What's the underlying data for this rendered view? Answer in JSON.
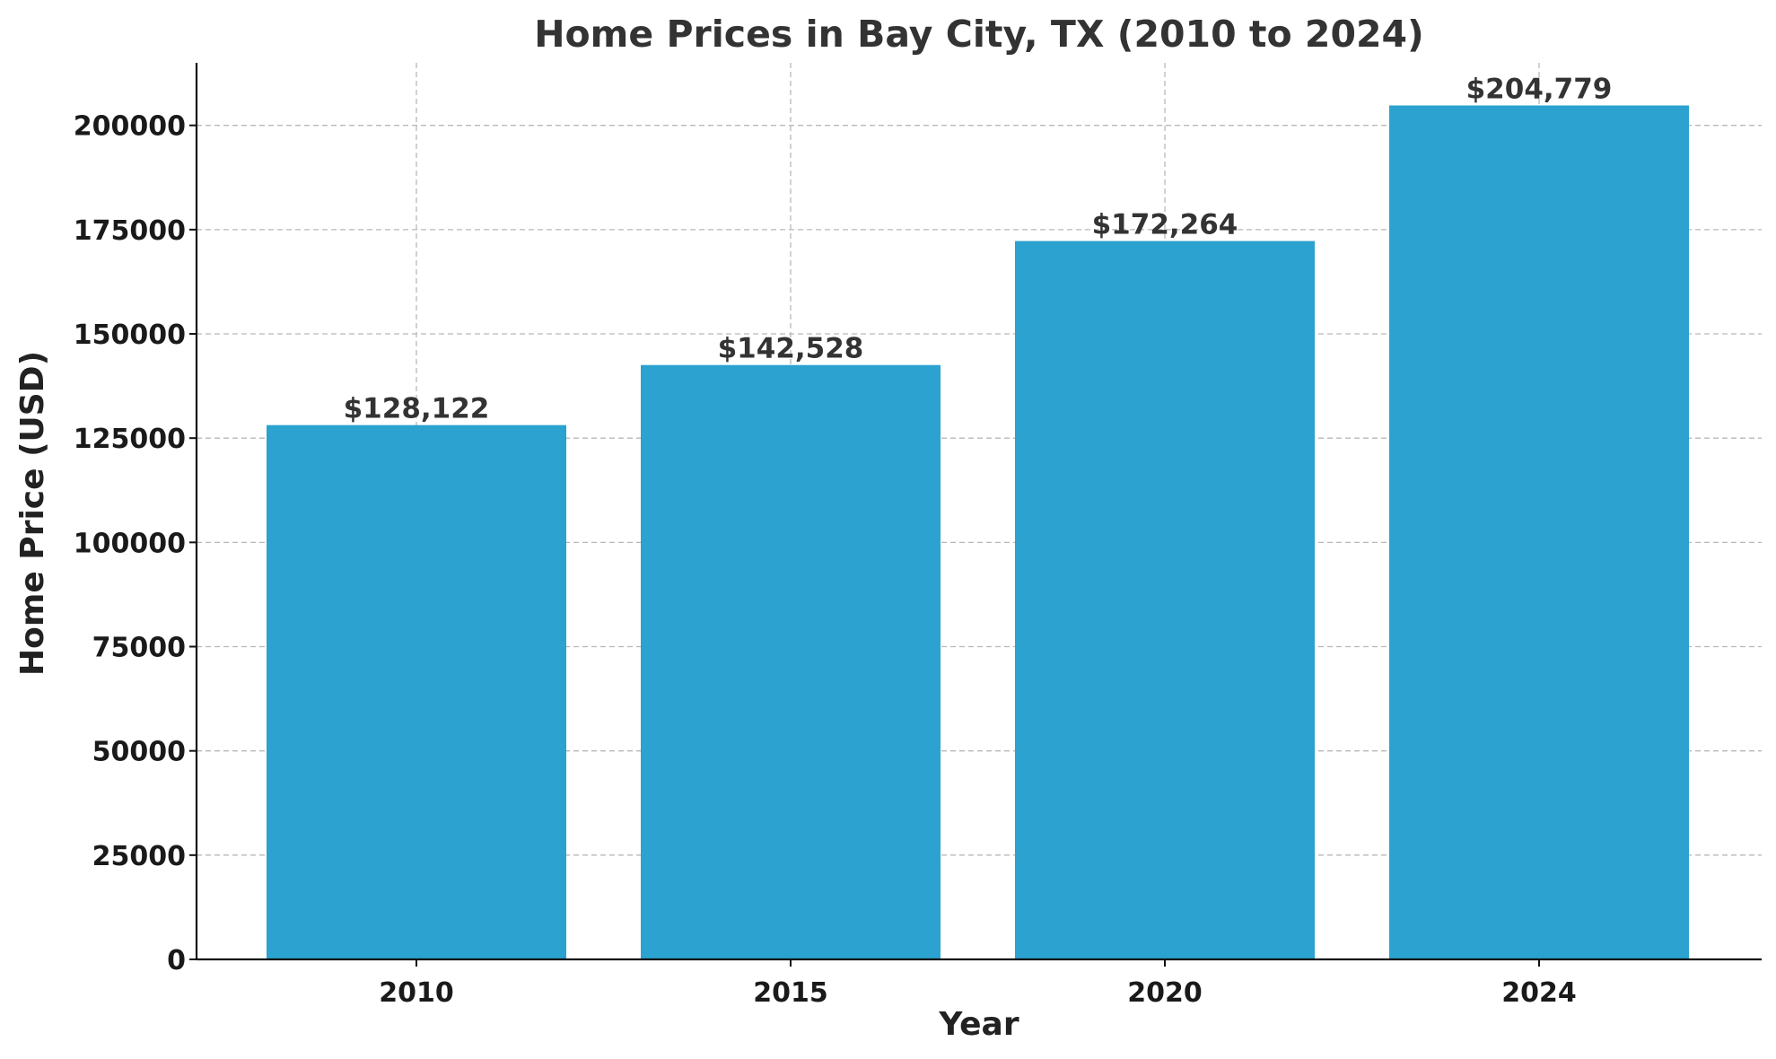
{
  "chart_data": {
    "type": "bar",
    "title": "Home Prices in Bay City, TX (2010 to 2024)",
    "xlabel": "Year",
    "ylabel": "Home Price (USD)",
    "categories": [
      "2010",
      "2015",
      "2020",
      "2024"
    ],
    "values": [
      128122,
      142528,
      172264,
      204779
    ],
    "value_labels": [
      "$128,122",
      "$142,528",
      "$172,264",
      "$204,779"
    ],
    "yticks": [
      0,
      25000,
      50000,
      75000,
      100000,
      125000,
      150000,
      175000,
      200000
    ],
    "ylim": [
      0,
      215000
    ],
    "grid": true,
    "bar_color": "#2ba2cf"
  }
}
